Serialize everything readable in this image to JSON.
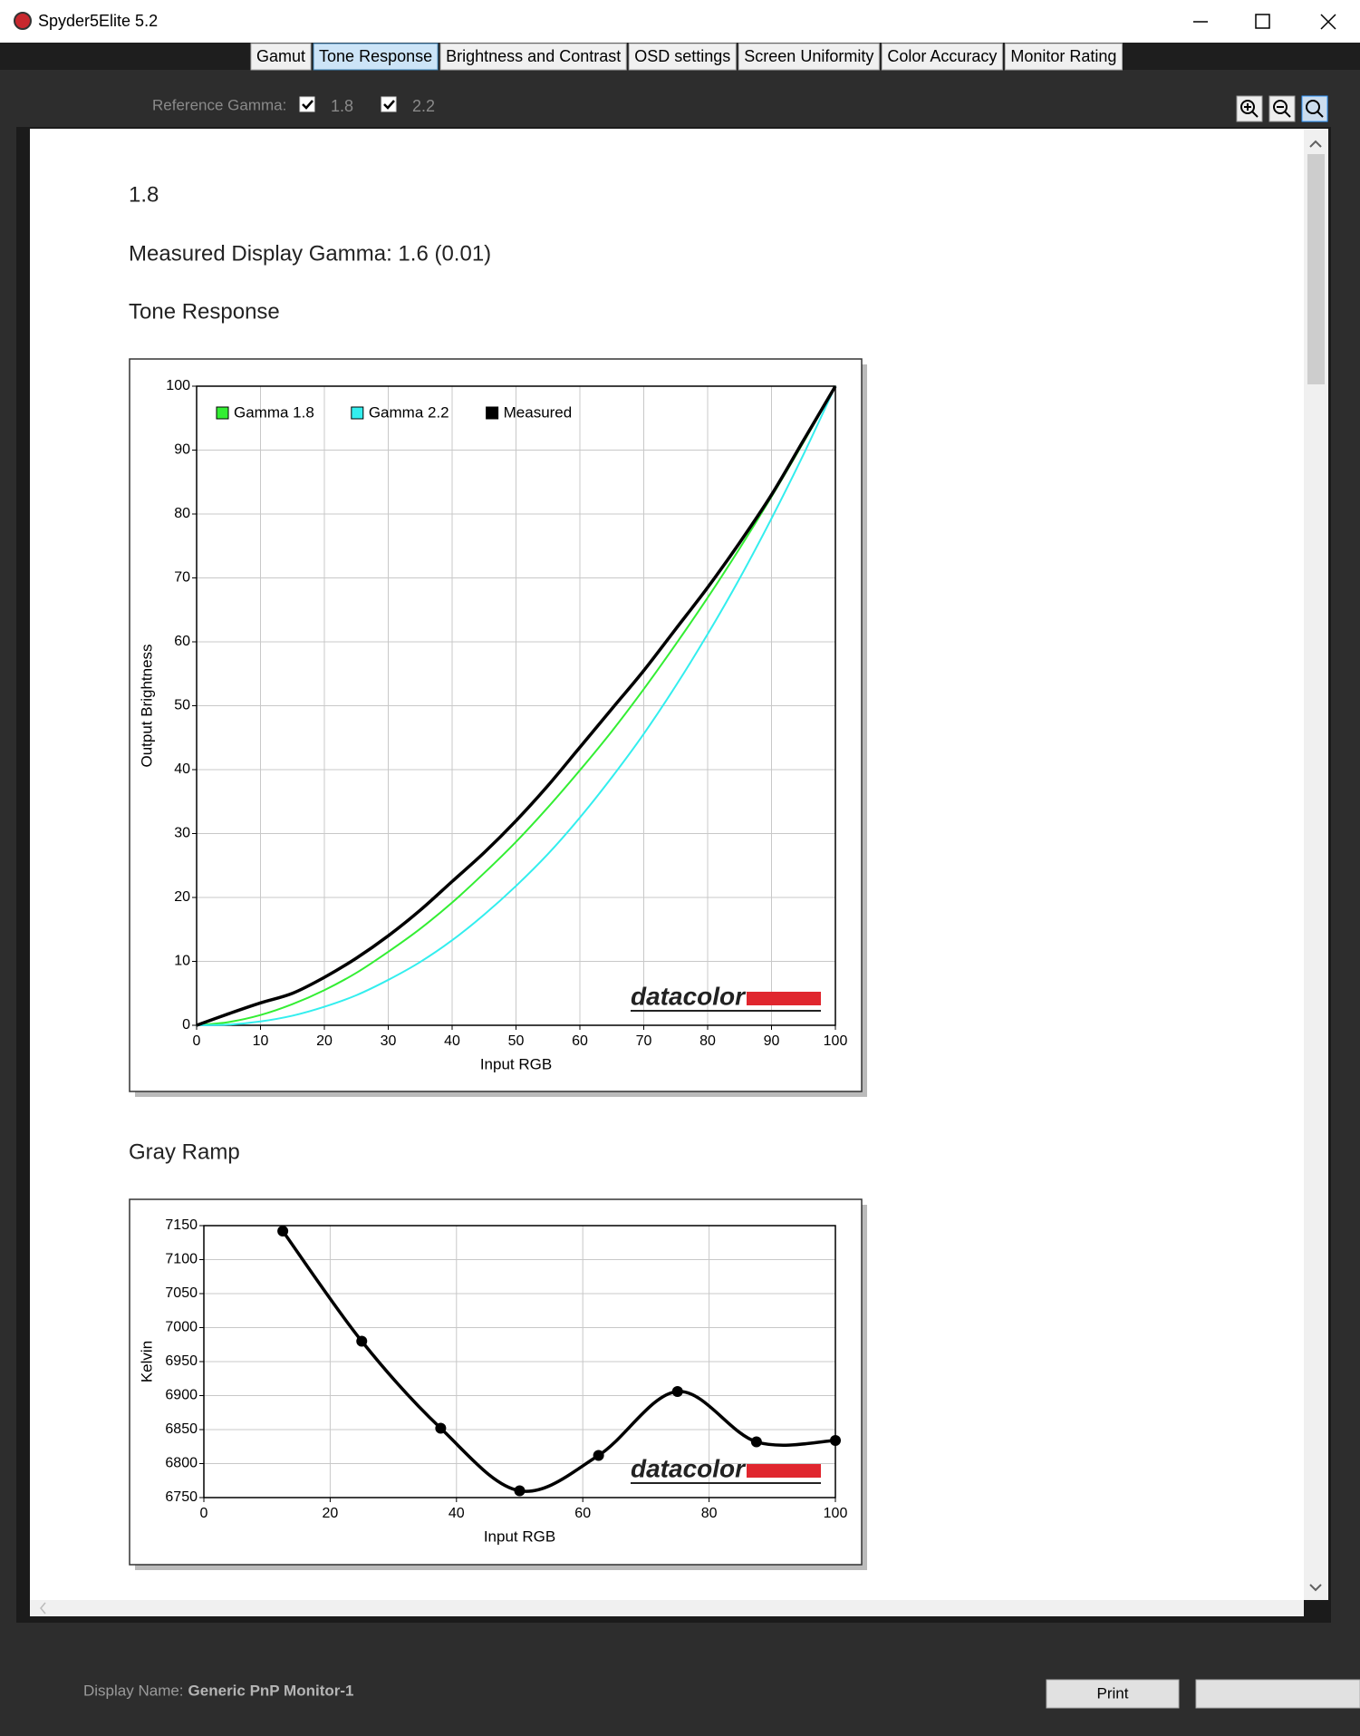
{
  "window": {
    "title": "Spyder5Elite 5.2"
  },
  "tabs": {
    "items": [
      "Gamut",
      "Tone Response",
      "Brightness and Contrast",
      "OSD settings",
      "Screen Uniformity",
      "Color Accuracy",
      "Monitor Rating"
    ],
    "active": 1
  },
  "toolbar": {
    "label": "Reference Gamma:",
    "options": [
      {
        "label": "1.8",
        "checked": true
      },
      {
        "label": "2.2",
        "checked": true
      }
    ]
  },
  "report": {
    "heading": "1.8",
    "measured": "Measured Display Gamma: 1.6 (0.01)",
    "section_1": "Tone Response",
    "section_2": "Gray Ramp"
  },
  "chart_data": [
    {
      "type": "line",
      "x_label": "Input RGB",
      "y_label": "Output Brightness",
      "watermark": "datacolor",
      "x": [
        0,
        5,
        10,
        15,
        20,
        25,
        30,
        35,
        40,
        45,
        50,
        55,
        60,
        65,
        70,
        75,
        80,
        85,
        90,
        95,
        100
      ],
      "series": [
        {
          "name": "Gamma 1.8",
          "color": "#33ee33",
          "values": [
            0,
            0.5,
            1.6,
            3.3,
            5.5,
            8.2,
            11.5,
            15.1,
            19.2,
            23.8,
            28.7,
            34.1,
            39.9,
            46.0,
            52.6,
            59.6,
            66.9,
            74.6,
            82.7,
            91.2,
            100
          ]
        },
        {
          "name": "Gamma 2.2",
          "color": "#33eeee",
          "values": [
            0,
            0.1,
            0.6,
            1.5,
            2.9,
            4.7,
            7.1,
            9.9,
            13.3,
            17.3,
            21.8,
            26.8,
            32.5,
            38.8,
            45.6,
            53.1,
            61.2,
            69.9,
            79.3,
            89.3,
            100
          ]
        },
        {
          "name": "Measured",
          "color": "#000000",
          "values": [
            0,
            1.8,
            3.5,
            5,
            7.5,
            10.5,
            14,
            18,
            22.5,
            27,
            32,
            37.5,
            43.5,
            49.5,
            55.5,
            62,
            68.5,
            75.5,
            83,
            91.5,
            100
          ]
        }
      ],
      "xlim": [
        0,
        100
      ],
      "xticks": [
        0,
        10,
        20,
        30,
        40,
        50,
        60,
        70,
        80,
        90,
        100
      ],
      "ylim": [
        0,
        100
      ],
      "yticks": [
        0,
        10,
        20,
        30,
        40,
        50,
        60,
        70,
        80,
        90,
        100
      ],
      "grid": true,
      "legend": "upper left"
    },
    {
      "type": "line",
      "x_label": "Input RGB",
      "y_label": "Kelvin",
      "watermark": "datacolor",
      "markers": true,
      "x": [
        12.5,
        25,
        37.5,
        50,
        62.5,
        75,
        87.5,
        100
      ],
      "series": [
        {
          "name": "Gray Ramp",
          "color": "#000000",
          "values": [
            7142,
            6980,
            6852,
            6760,
            6812,
            6906,
            6832,
            6834
          ]
        }
      ],
      "xlim": [
        0,
        100
      ],
      "xticks": [
        0,
        20,
        40,
        60,
        80,
        100
      ],
      "ylim": [
        6750,
        7150
      ],
      "yticks": [
        6750,
        6800,
        6850,
        6900,
        6950,
        7000,
        7050,
        7100,
        7150
      ],
      "grid": true
    }
  ],
  "footer": {
    "label": "Display Name:",
    "value": "Generic PnP Monitor-1",
    "button": "Print"
  }
}
